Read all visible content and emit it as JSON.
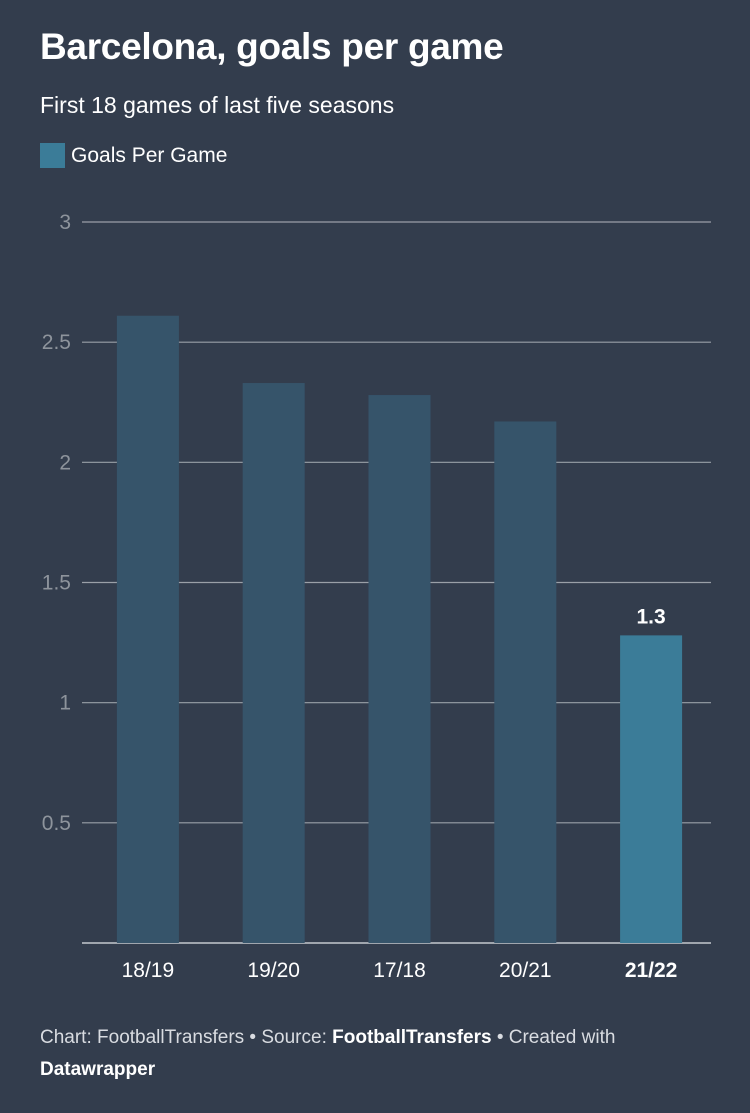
{
  "header": {
    "title": "Barcelona, goals per game",
    "subtitle": "First 18 games of last five seasons"
  },
  "footer": {
    "chart_prefix": "Chart: FootballTransfers",
    "separator_1": " • Source: ",
    "source": "FootballTransfers",
    "separator_2": " • Created with ",
    "tool": "Datawrapper"
  },
  "colors": {
    "background": "#333d4d",
    "bar": "#36546a",
    "highlight_bar": "#3b7c98",
    "gridline": "#9aa0a8",
    "tick_label": "#8e949c"
  },
  "chart_data": {
    "type": "bar",
    "categories": [
      "18/19",
      "19/20",
      "17/18",
      "20/21",
      "21/22"
    ],
    "series": [
      {
        "name": "Goals Per Game",
        "values": [
          2.61,
          2.33,
          2.28,
          2.17,
          1.28
        ]
      }
    ],
    "highlighted_category": "21/22",
    "value_labels": [
      {
        "category": "21/22",
        "text": "1.3"
      }
    ],
    "yticks": [
      "0.5",
      "1",
      "1.5",
      "2",
      "2.5",
      "3"
    ],
    "ylim": [
      0,
      3
    ],
    "grid": true,
    "legend_position": "top-left",
    "xlabel": "",
    "ylabel": ""
  }
}
